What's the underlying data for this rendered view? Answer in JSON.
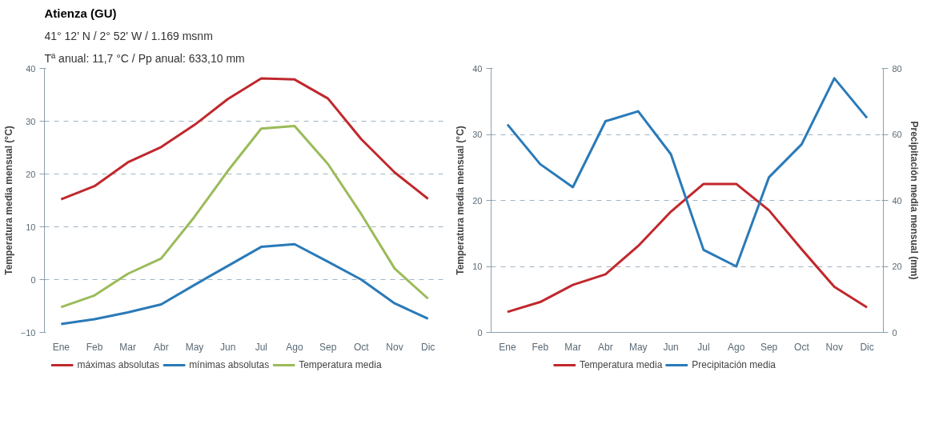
{
  "chart_data": [
    {
      "type": "line",
      "title": "Atienza (GU)",
      "subtitle": "41° 12' N / 2° 52' W / 1.169 msnm",
      "annotations": [
        "Tª anual: 11,7 °C / Pp anual: 633,10 mm"
      ],
      "ylabel": "Temperatura media mensual (°C)",
      "categories": [
        "Ene",
        "Feb",
        "Mar",
        "Abr",
        "May",
        "Jun",
        "Jul",
        "Ago",
        "Sep",
        "Oct",
        "Nov",
        "Dic"
      ],
      "ylim": [
        -10,
        40
      ],
      "yticks": [
        -10,
        0,
        10,
        20,
        30,
        40
      ],
      "grid": "y",
      "legend": "bottom",
      "line_style": "solid",
      "series": [
        {
          "name": "máximas absolutas",
          "color": "#c0282d",
          "values": [
            15.2,
            17.7,
            22.2,
            25.1,
            29.3,
            34.2,
            38.1,
            37.9,
            34.3,
            26.6,
            20.3,
            15.3
          ]
        },
        {
          "name": "mínimas absolutas",
          "color": "#2a7ab8",
          "values": [
            -8.4,
            -7.5,
            -6.2,
            -4.7,
            -1.0,
            2.6,
            6.2,
            6.7,
            3.4,
            0.0,
            -4.5,
            -7.4
          ]
        },
        {
          "name": "Temperatura media",
          "color": "#9bbb59",
          "values": [
            -5.2,
            -3.0,
            1.1,
            4.0,
            11.9,
            20.6,
            28.6,
            29.1,
            21.9,
            12.4,
            2.1,
            -3.6
          ]
        }
      ]
    },
    {
      "type": "line",
      "ylabel": "Temperatura media mensual (°C)",
      "y2label": "Precipitación media mensual (mm)",
      "categories": [
        "Ene",
        "Feb",
        "Mar",
        "Abr",
        "May",
        "Jun",
        "Jul",
        "Ago",
        "Sep",
        "Oct",
        "Nov",
        "Dic"
      ],
      "ylim": [
        0,
        40
      ],
      "yticks": [
        0,
        10,
        20,
        30,
        40
      ],
      "y2lim": [
        0,
        80
      ],
      "y2ticks": [
        0,
        20,
        40,
        60,
        80
      ],
      "grid": "y",
      "legend": "bottom",
      "line_style": "solid",
      "series": [
        {
          "name": "Temperatura media",
          "color": "#c0282d",
          "values": [
            3.1,
            4.6,
            7.2,
            8.8,
            13.1,
            18.3,
            22.5,
            22.5,
            18.5,
            12.6,
            6.9,
            3.8
          ]
        },
        {
          "name": "Precipitación media",
          "color": "#2a7ab8",
          "axis": "y2",
          "values": [
            63,
            51,
            44,
            64,
            67,
            54,
            25,
            20,
            47,
            57,
            77,
            65
          ]
        }
      ]
    }
  ]
}
